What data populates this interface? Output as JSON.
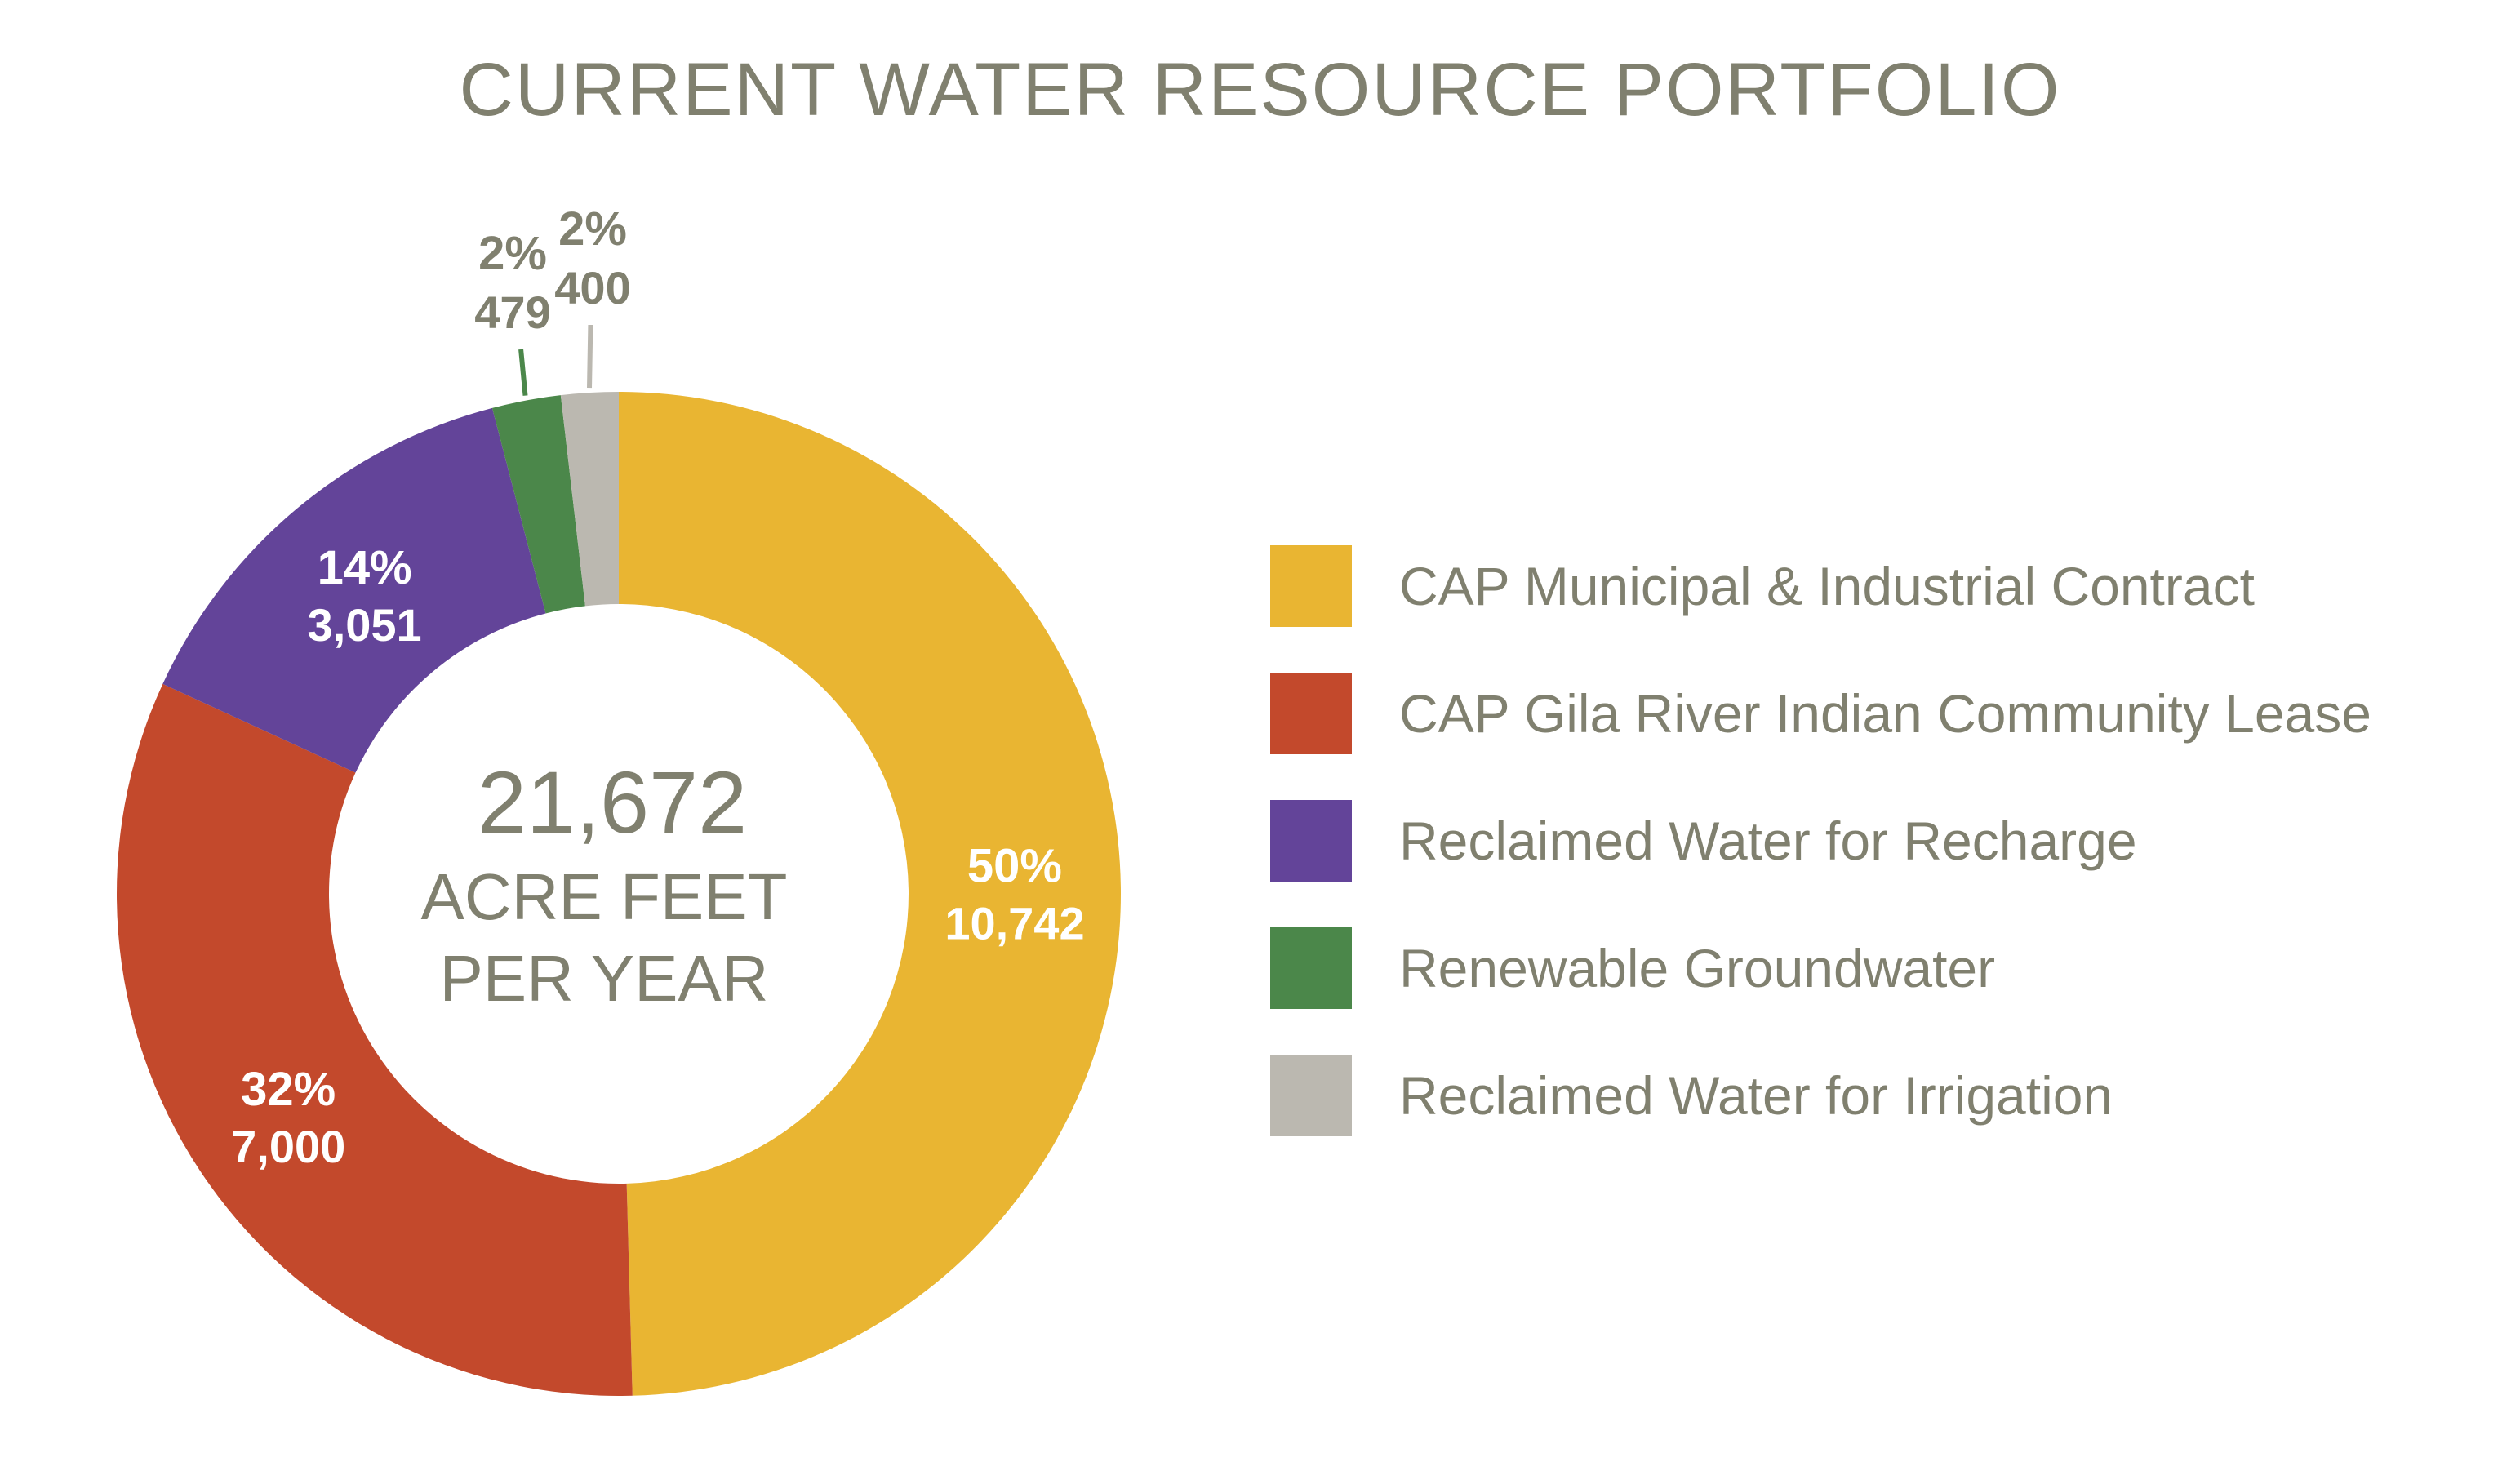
{
  "title": "CURRENT WATER RESOURCE PORTFOLIO",
  "center": {
    "total": "21,672",
    "line1": "ACRE FEET",
    "line2": "PER YEAR"
  },
  "colors": {
    "text": "#80806f",
    "inside_label": "#ffffff"
  },
  "chart_data": {
    "type": "pie",
    "variant": "donut",
    "title": "CURRENT WATER RESOURCE PORTFOLIO",
    "total": 21672,
    "unit": "ACRE FEET PER YEAR",
    "legend_position": "right",
    "slices": [
      {
        "name": "CAP Municipal & Industrial Contract",
        "value": 10742,
        "value_label": "10,742",
        "percent": 50,
        "percent_label": "50%",
        "color": "#e9b532",
        "label_placement": "inside"
      },
      {
        "name": "CAP Gila River Indian Community Lease",
        "value": 7000,
        "value_label": "7,000",
        "percent": 32,
        "percent_label": "32%",
        "color": "#c3492c",
        "label_placement": "inside"
      },
      {
        "name": "Reclaimed Water for Recharge",
        "value": 3051,
        "value_label": "3,051",
        "percent": 14,
        "percent_label": "14%",
        "color": "#634499",
        "label_placement": "inside"
      },
      {
        "name": "Renewable Groundwater",
        "value": 479,
        "value_label": "479",
        "percent": 2,
        "percent_label": "2%",
        "color": "#4b874a",
        "label_placement": "outside"
      },
      {
        "name": "Reclaimed Water for Irrigation",
        "value": 400,
        "value_label": "400",
        "percent": 2,
        "percent_label": "2%",
        "color": "#bbb8b0",
        "label_placement": "outside"
      }
    ]
  }
}
